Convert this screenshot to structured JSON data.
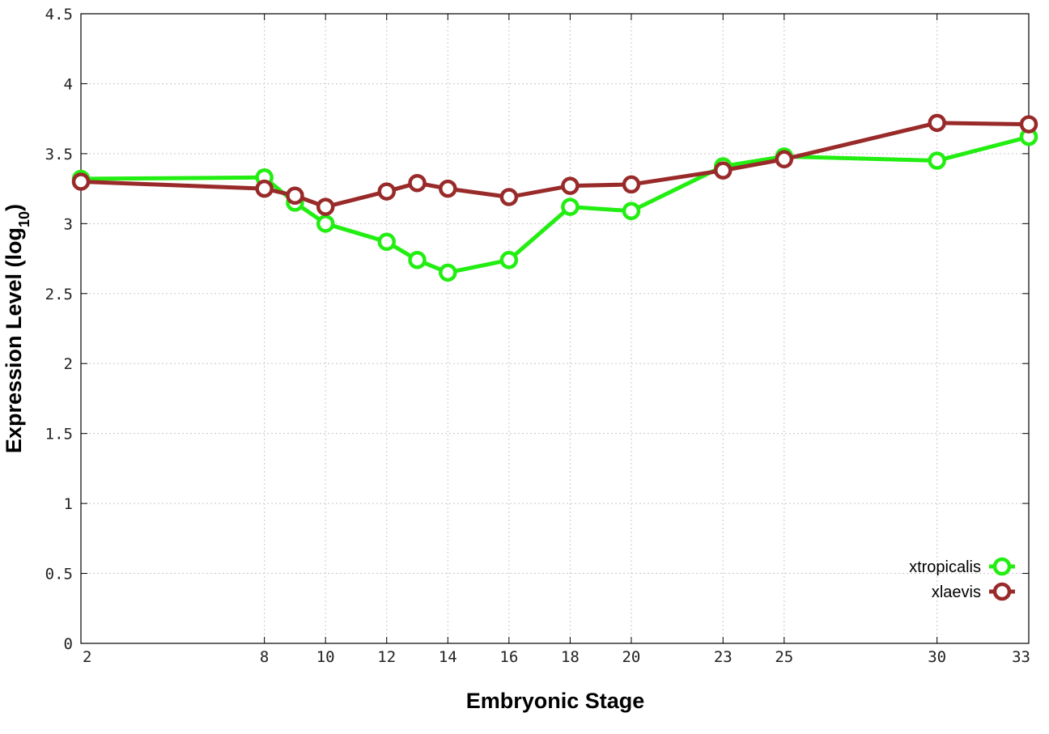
{
  "chart_data": {
    "type": "line",
    "title": "",
    "xlabel": "Embryonic Stage",
    "ylabel": "Expression Level (log",
    "ylabel_subscript": "10",
    "ylabel_close": ")",
    "x_ticks": [
      "2",
      "8",
      "10",
      "12",
      "14",
      "16",
      "18",
      "20",
      "23",
      "25",
      "30",
      "33"
    ],
    "y_ticks": [
      "0",
      "0.5",
      "1",
      "1.5",
      "2",
      "2.5",
      "3",
      "3.5",
      "4",
      "4.5"
    ],
    "ylim": [
      0,
      4.5
    ],
    "grid": true,
    "legend_position": "bottom-right",
    "x": [
      2,
      8,
      9,
      10,
      12,
      13,
      14,
      16,
      18,
      20,
      23,
      25,
      30,
      33
    ],
    "series": [
      {
        "name": "xtropicalis",
        "color": "#22ee11",
        "values": [
          3.32,
          3.33,
          3.15,
          3.0,
          2.87,
          2.74,
          2.65,
          2.74,
          3.12,
          3.09,
          3.41,
          3.48,
          3.45,
          3.62
        ]
      },
      {
        "name": "xlaevis",
        "color": "#992a2a",
        "values": [
          3.3,
          3.25,
          3.2,
          3.12,
          3.23,
          3.29,
          3.25,
          3.19,
          3.27,
          3.28,
          3.38,
          3.46,
          3.72,
          3.71
        ]
      }
    ]
  }
}
